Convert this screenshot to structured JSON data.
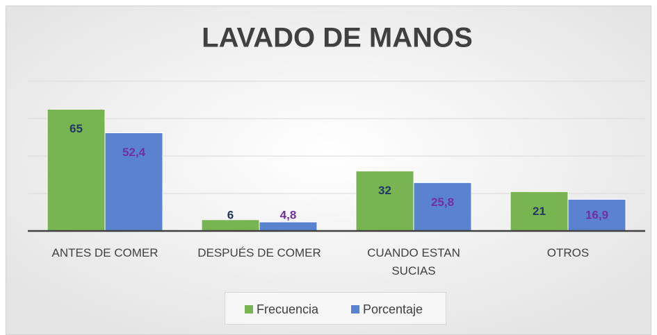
{
  "chart_data": {
    "type": "bar",
    "title": "LAVADO DE MANOS",
    "categories": [
      "ANTES DE COMER",
      "DESPUÉS DE COMER",
      "CUANDO ESTAN SUCIAS",
      "OTROS"
    ],
    "series": [
      {
        "name": "Frecuencia",
        "color": "#78b552",
        "values": [
          65,
          6,
          32,
          21
        ]
      },
      {
        "name": "Porcentaje",
        "color": "#5a82cf",
        "values": [
          52.4,
          4.8,
          25.8,
          16.9
        ],
        "value_labels": [
          "52,4",
          "4,8",
          "25,8",
          "16,9"
        ]
      }
    ],
    "ylim": [
      0,
      80
    ],
    "yticks": [
      0,
      20,
      40,
      60,
      80
    ],
    "grid": true,
    "legend": "bottom"
  }
}
